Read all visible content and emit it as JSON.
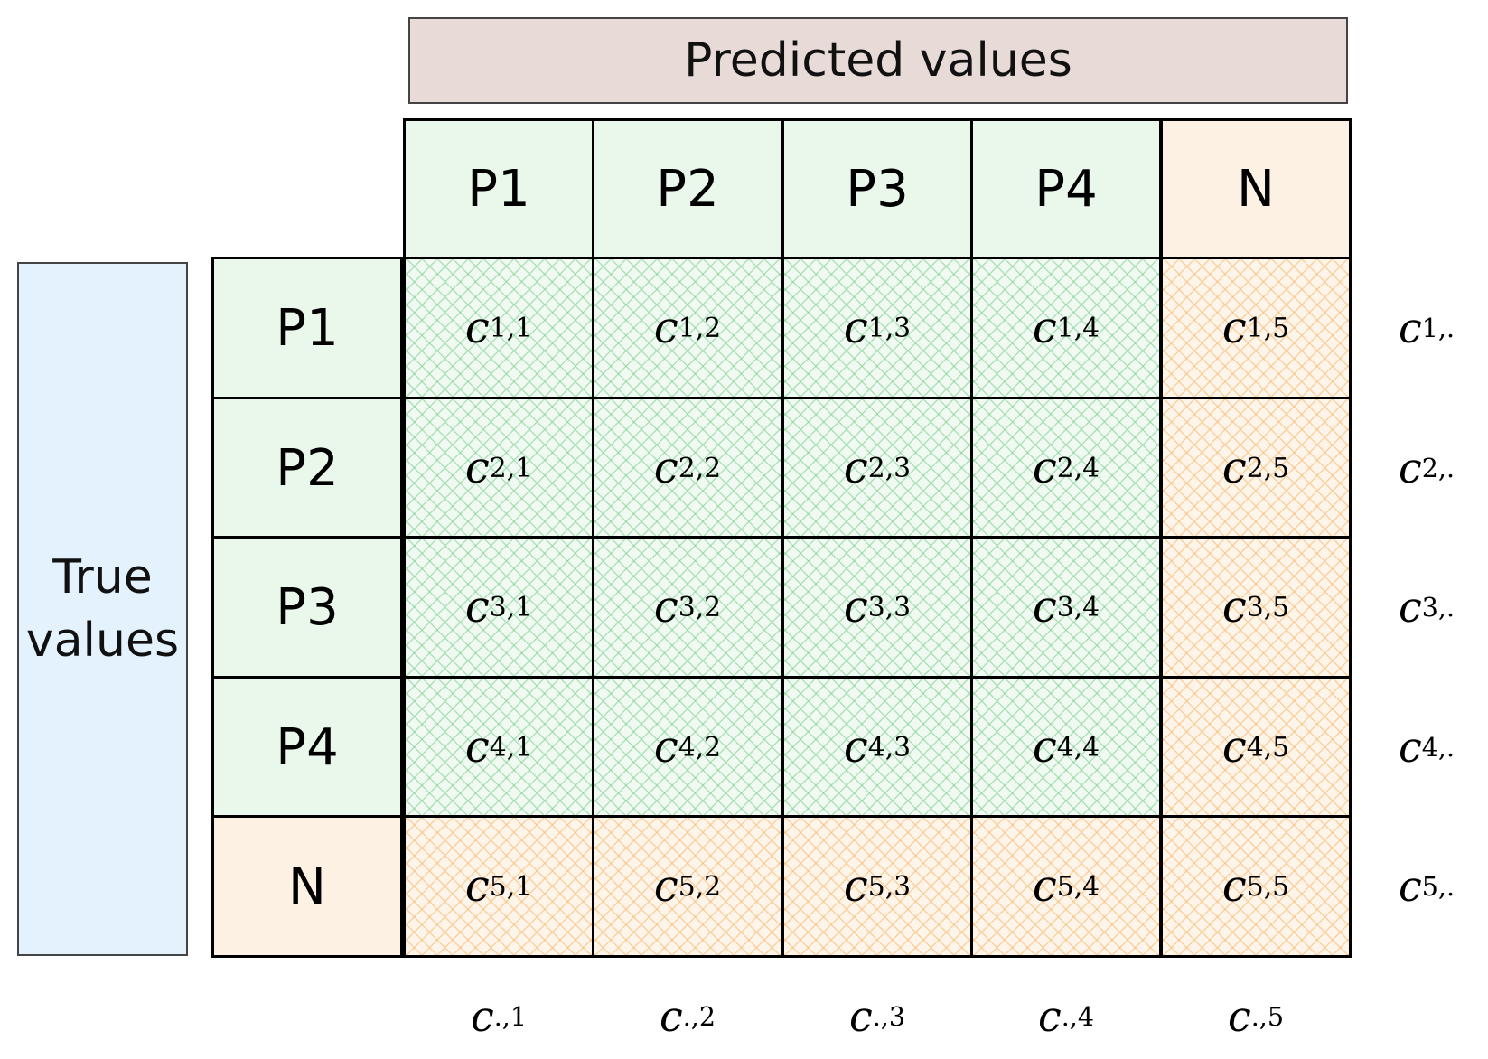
{
  "title_top": "Predicted values",
  "title_left": [
    "True",
    "values"
  ],
  "columns": [
    {
      "label": "P1",
      "kind": "green"
    },
    {
      "label": "P2",
      "kind": "green"
    },
    {
      "label": "P3",
      "kind": "green"
    },
    {
      "label": "P4",
      "kind": "green"
    },
    {
      "label": "N",
      "kind": "orange"
    }
  ],
  "rows": [
    {
      "label": "P1",
      "kind": "green"
    },
    {
      "label": "P2",
      "kind": "green"
    },
    {
      "label": "P3",
      "kind": "green"
    },
    {
      "label": "P4",
      "kind": "green"
    },
    {
      "label": "N",
      "kind": "orange"
    }
  ],
  "cells": [
    [
      {
        "base": "c",
        "sub": "1,1",
        "kind": "green"
      },
      {
        "base": "c",
        "sub": "1,2",
        "kind": "green"
      },
      {
        "base": "c",
        "sub": "1,3",
        "kind": "green"
      },
      {
        "base": "c",
        "sub": "1,4",
        "kind": "green"
      },
      {
        "base": "c",
        "sub": "1,5",
        "kind": "orange"
      }
    ],
    [
      {
        "base": "c",
        "sub": "2,1",
        "kind": "green"
      },
      {
        "base": "c",
        "sub": "2,2",
        "kind": "green"
      },
      {
        "base": "c",
        "sub": "2,3",
        "kind": "green"
      },
      {
        "base": "c",
        "sub": "2,4",
        "kind": "green"
      },
      {
        "base": "c",
        "sub": "2,5",
        "kind": "orange"
      }
    ],
    [
      {
        "base": "c",
        "sub": "3,1",
        "kind": "green"
      },
      {
        "base": "c",
        "sub": "3,2",
        "kind": "green"
      },
      {
        "base": "c",
        "sub": "3,3",
        "kind": "green"
      },
      {
        "base": "c",
        "sub": "3,4",
        "kind": "green"
      },
      {
        "base": "c",
        "sub": "3,5",
        "kind": "orange"
      }
    ],
    [
      {
        "base": "c",
        "sub": "4,1",
        "kind": "green"
      },
      {
        "base": "c",
        "sub": "4,2",
        "kind": "green"
      },
      {
        "base": "c",
        "sub": "4,3",
        "kind": "green"
      },
      {
        "base": "c",
        "sub": "4,4",
        "kind": "green"
      },
      {
        "base": "c",
        "sub": "4,5",
        "kind": "orange"
      }
    ],
    [
      {
        "base": "c",
        "sub": "5,1",
        "kind": "orange"
      },
      {
        "base": "c",
        "sub": "5,2",
        "kind": "orange"
      },
      {
        "base": "c",
        "sub": "5,3",
        "kind": "orange"
      },
      {
        "base": "c",
        "sub": "5,4",
        "kind": "orange"
      },
      {
        "base": "c",
        "sub": "5,5",
        "kind": "orange"
      }
    ]
  ],
  "row_sums": [
    {
      "base": "c",
      "sub": "1,."
    },
    {
      "base": "c",
      "sub": "2,."
    },
    {
      "base": "c",
      "sub": "3,."
    },
    {
      "base": "c",
      "sub": "4,."
    },
    {
      "base": "c",
      "sub": "5,."
    }
  ],
  "col_sums": [
    {
      "base": "c",
      "sub": ".,1"
    },
    {
      "base": "c",
      "sub": ".,2"
    },
    {
      "base": "c",
      "sub": ".,3"
    },
    {
      "base": "c",
      "sub": ".,4"
    },
    {
      "base": "c",
      "sub": ".,5"
    }
  ],
  "colors": {
    "green_fill": "#eaf8ec",
    "orange_fill": "#fdf1e4",
    "top_banner": "#e8dad6",
    "left_banner": "#e3f2fc"
  }
}
